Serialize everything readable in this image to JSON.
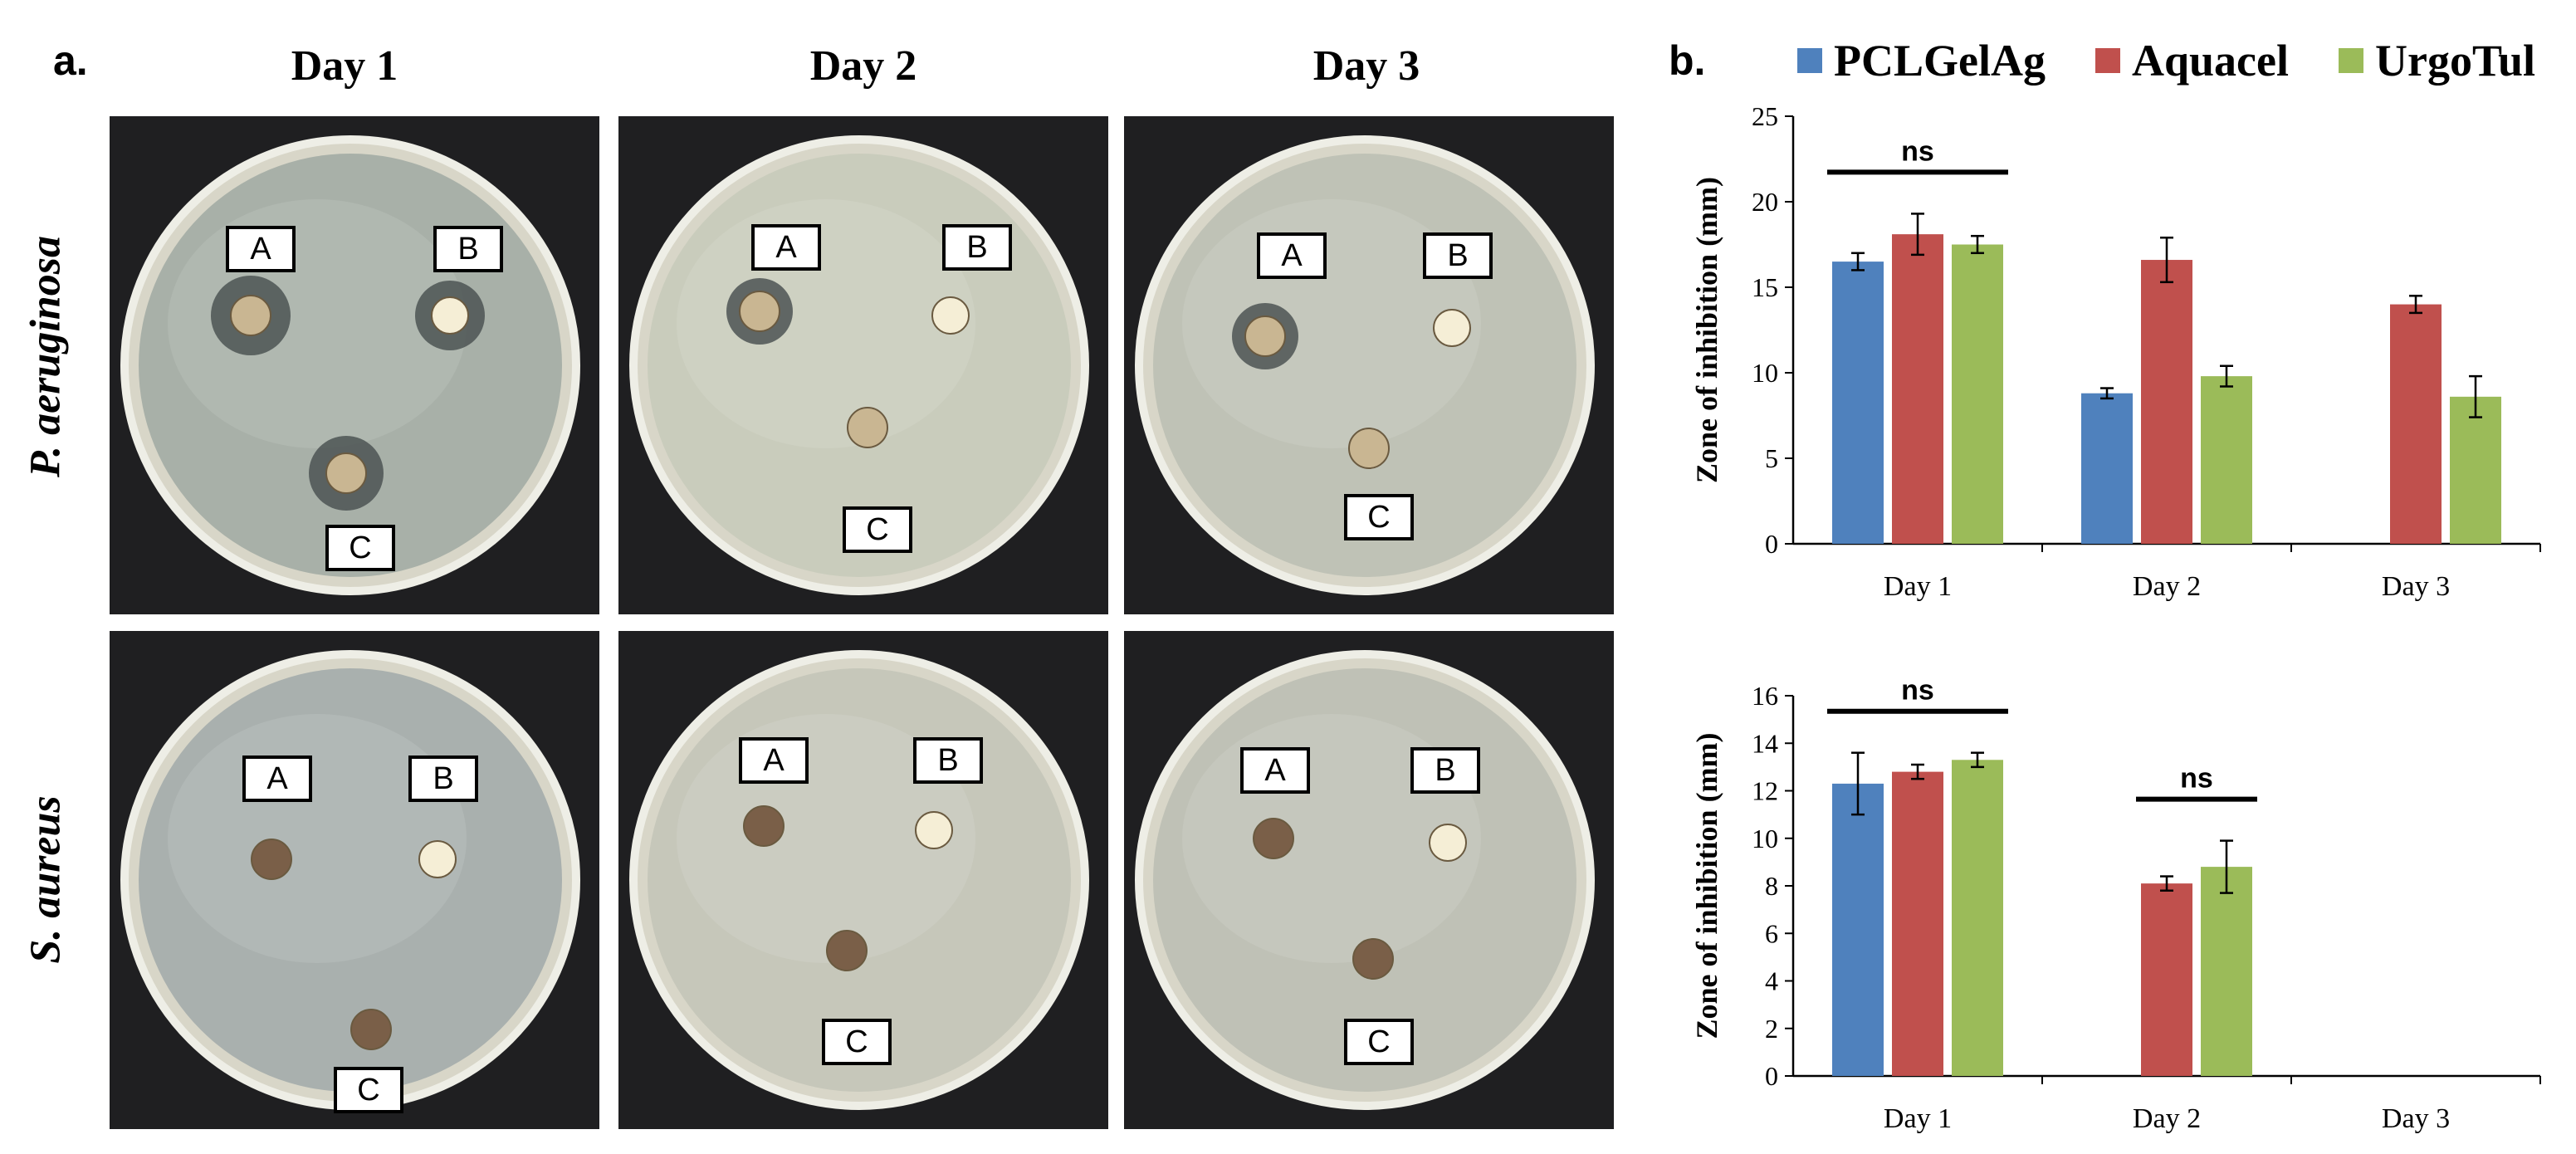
{
  "panel_a": {
    "letter": "a.",
    "columns": [
      "Day 1",
      "Day 2",
      "Day 3"
    ],
    "rows": [
      "P. aeruginosa",
      "S. aureus"
    ],
    "disc_labels": [
      "A",
      "B",
      "C"
    ]
  },
  "panel_b": {
    "letter": "b."
  },
  "colors": {
    "PCLGelAg": "#4f81bd",
    "Aquacel": "#c0504d",
    "UrgoTul": "#9bbb59"
  },
  "chart_data": [
    {
      "type": "bar",
      "categories": [
        "Day 1",
        "Day 2",
        "Day 3"
      ],
      "ylabel": "Zone of inhibition (mm)",
      "ylim": [
        0,
        25
      ],
      "yticks": [
        0,
        5,
        10,
        15,
        20,
        25
      ],
      "legend": "top",
      "series": [
        {
          "name": "PCLGelAg",
          "values": [
            16.5,
            8.8,
            null
          ],
          "errors": [
            0.5,
            0.3,
            null
          ]
        },
        {
          "name": "Aquacel",
          "values": [
            18.1,
            16.6,
            14.0
          ],
          "errors": [
            1.2,
            1.3,
            0.5
          ]
        },
        {
          "name": "UrgoTul",
          "values": [
            17.5,
            9.8,
            8.6
          ],
          "errors": [
            0.5,
            0.6,
            1.2
          ]
        }
      ],
      "annotations": [
        {
          "text": "ns",
          "category": "Day 1"
        }
      ]
    },
    {
      "type": "bar",
      "categories": [
        "Day 1",
        "Day 2",
        "Day 3"
      ],
      "ylabel": "Zone of inhibition (mm)",
      "ylim": [
        0,
        16
      ],
      "yticks": [
        0,
        2,
        4,
        6,
        8,
        10,
        12,
        14,
        16
      ],
      "series": [
        {
          "name": "PCLGelAg",
          "values": [
            12.3,
            null,
            null
          ],
          "errors": [
            1.3,
            null,
            null
          ]
        },
        {
          "name": "Aquacel",
          "values": [
            12.8,
            8.1,
            null
          ],
          "errors": [
            0.3,
            0.3,
            null
          ]
        },
        {
          "name": "UrgoTul",
          "values": [
            13.3,
            8.8,
            null
          ],
          "errors": [
            0.3,
            1.1,
            null
          ]
        }
      ],
      "annotations": [
        {
          "text": "ns",
          "category": "Day 1"
        },
        {
          "text": "ns",
          "category": "Day 2"
        }
      ]
    }
  ]
}
